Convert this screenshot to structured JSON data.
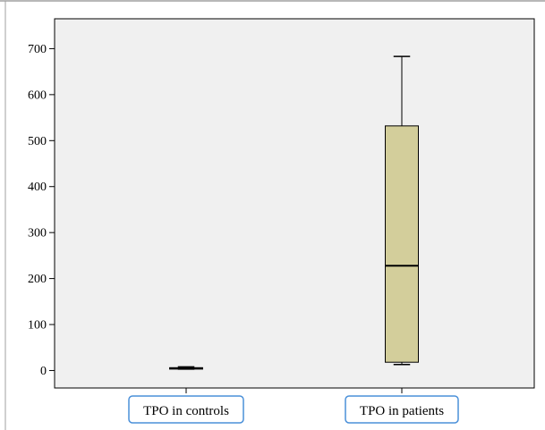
{
  "chart_data": {
    "type": "boxplot",
    "categories": [
      "TPO in controls",
      "TPO in patients"
    ],
    "boxes": [
      {
        "category": "TPO in controls",
        "min": 3,
        "q1": 4,
        "median": 5,
        "q3": 6,
        "max": 8
      },
      {
        "category": "TPO in patients",
        "min": 13,
        "q1": 18,
        "median": 228,
        "q3": 532,
        "max": 683
      }
    ],
    "yticks": [
      "0",
      "100",
      "200",
      "300",
      "400",
      "500",
      "600",
      "700"
    ],
    "ylim": [
      -38,
      765
    ],
    "grid": false,
    "colors": {
      "plot_background": "#f0f0f0",
      "box_fill": "#d3ce9b",
      "category_label_border": "#4a90d9",
      "axis": "#000000"
    }
  }
}
